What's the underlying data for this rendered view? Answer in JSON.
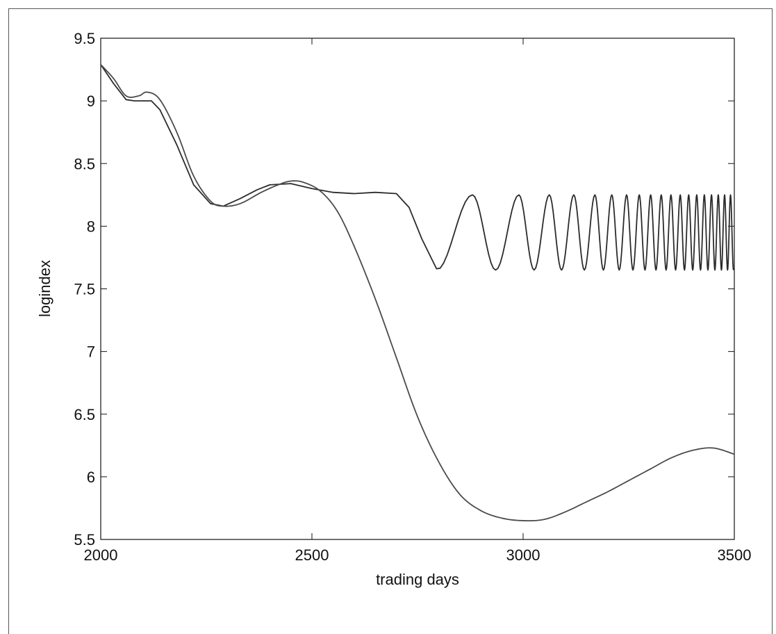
{
  "chart_data": {
    "type": "line",
    "title": "",
    "xlabel": "trading days",
    "ylabel": "logindex",
    "xlim": [
      2000,
      3500
    ],
    "ylim": [
      5.5,
      9.5
    ],
    "grid": false,
    "x_ticks": [
      "2000",
      "2500",
      "3000",
      "3500"
    ],
    "y_ticks": [
      "9.5",
      "9",
      "8.5",
      "8",
      "7.5",
      "7",
      "6.5",
      "6",
      "5.5"
    ],
    "colors": {
      "series_oscillating": "#2b2b2b",
      "series_decline": "#4a4a4a",
      "axes": "#111111"
    },
    "series": [
      {
        "points": [
          [
            2000,
            9.29
          ],
          [
            2030,
            9.14
          ],
          [
            2060,
            9.01
          ],
          [
            2080,
            9.0
          ],
          [
            2120,
            9.0
          ],
          [
            2140,
            8.93
          ],
          [
            2180,
            8.65
          ],
          [
            2220,
            8.33
          ],
          [
            2260,
            8.18
          ],
          [
            2290,
            8.16
          ],
          [
            2330,
            8.22
          ],
          [
            2370,
            8.29
          ],
          [
            2400,
            8.33
          ],
          [
            2450,
            8.34
          ],
          [
            2500,
            8.3
          ],
          [
            2550,
            8.27
          ],
          [
            2600,
            8.26
          ],
          [
            2650,
            8.27
          ],
          [
            2700,
            8.26
          ],
          [
            2730,
            8.15
          ],
          [
            2760,
            7.9
          ],
          [
            2795,
            7.66
          ]
        ]
      },
      {
        "points": [
          [
            2000,
            9.29
          ],
          [
            2030,
            9.18
          ],
          [
            2060,
            9.04
          ],
          [
            2090,
            9.04
          ],
          [
            2110,
            9.07
          ],
          [
            2140,
            9.01
          ],
          [
            2180,
            8.75
          ],
          [
            2220,
            8.4
          ],
          [
            2260,
            8.2
          ],
          [
            2290,
            8.16
          ],
          [
            2330,
            8.18
          ],
          [
            2380,
            8.27
          ],
          [
            2420,
            8.33
          ],
          [
            2450,
            8.36
          ],
          [
            2480,
            8.35
          ],
          [
            2520,
            8.28
          ],
          [
            2560,
            8.12
          ],
          [
            2600,
            7.84
          ],
          [
            2650,
            7.42
          ],
          [
            2700,
            6.95
          ],
          [
            2750,
            6.48
          ],
          [
            2800,
            6.12
          ],
          [
            2850,
            5.86
          ],
          [
            2900,
            5.73
          ],
          [
            2950,
            5.67
          ],
          [
            3000,
            5.65
          ],
          [
            3050,
            5.66
          ],
          [
            3100,
            5.72
          ],
          [
            3150,
            5.8
          ],
          [
            3200,
            5.88
          ],
          [
            3250,
            5.97
          ],
          [
            3300,
            6.06
          ],
          [
            3350,
            6.15
          ],
          [
            3400,
            6.21
          ],
          [
            3450,
            6.23
          ],
          [
            3500,
            6.18
          ]
        ]
      }
    ],
    "oscillation": {
      "start_x": 2795,
      "end_x": 3500,
      "low": 7.65,
      "high": 8.25,
      "peaks_x": [
        2880,
        2990,
        3062,
        3120,
        3170,
        3210,
        3245,
        3275,
        3302,
        3327,
        3350,
        3372,
        3392,
        3411,
        3429,
        3446,
        3462,
        3477,
        3491
      ]
    }
  }
}
